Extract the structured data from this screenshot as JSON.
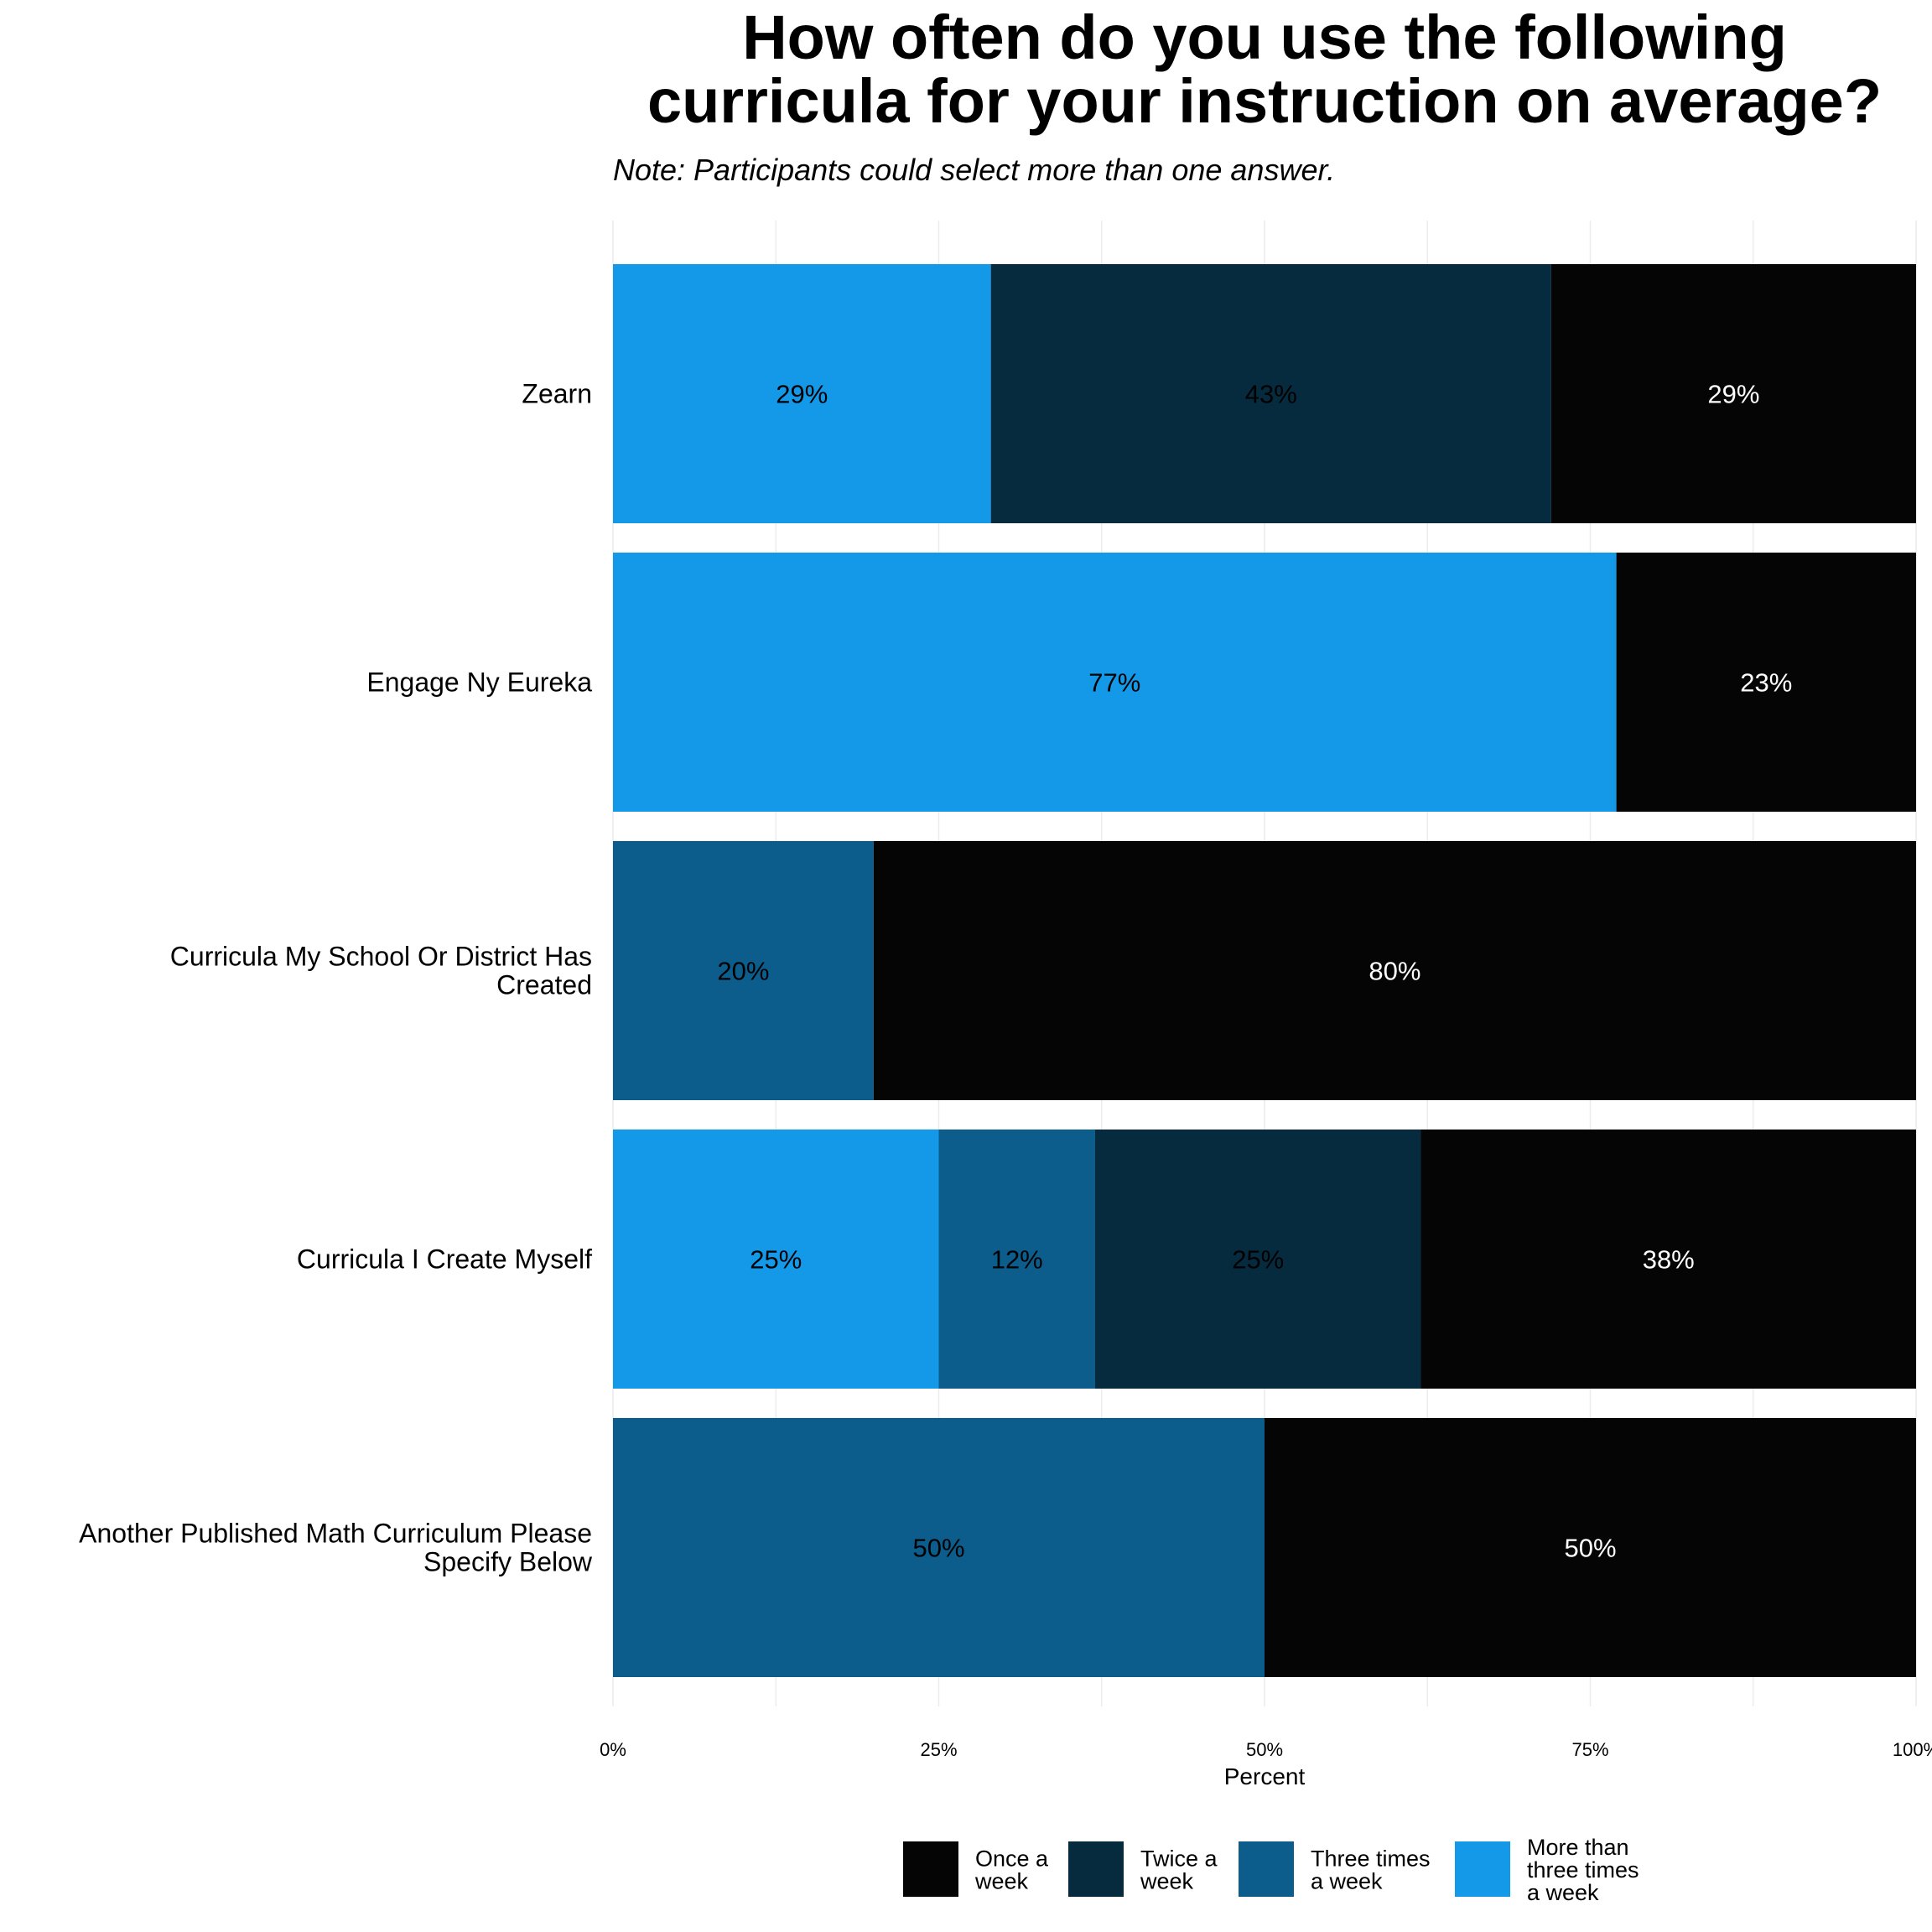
{
  "chart_data": {
    "type": "bar",
    "orientation": "horizontal",
    "stacked": true,
    "title_lines": [
      "How often do you use the following",
      "curricula for your instruction on average?"
    ],
    "subtitle": "Note: Participants could select more than one answer.",
    "xlabel": "Percent",
    "ylabel": "",
    "xlim": [
      0,
      100
    ],
    "x_ticks": [
      0,
      25,
      50,
      75,
      100
    ],
    "x_tick_labels": [
      "0%",
      "25%",
      "50%",
      "75%",
      "100%"
    ],
    "grid": true,
    "legend_position": "bottom",
    "categories": [
      [
        "Zearn"
      ],
      [
        "Engage Ny Eureka"
      ],
      [
        "Curricula My School Or District Has",
        "Created"
      ],
      [
        "Curricula I Create Myself"
      ],
      [
        "Another Published Math Curriculum Please",
        "Specify Below"
      ]
    ],
    "series": [
      {
        "name": "More than three times a week",
        "legend_lines": [
          "More than",
          "three times",
          "a week"
        ],
        "color": "#1399e8",
        "label_color": "#000000",
        "values": [
          29,
          77,
          0,
          25,
          0
        ],
        "labels": [
          "29%",
          "77%",
          "",
          "25%",
          ""
        ]
      },
      {
        "name": "Three times a week",
        "legend_lines": [
          "Three times",
          "a week"
        ],
        "color": "#0c5d8c",
        "label_color": "#000000",
        "values": [
          0,
          0,
          20,
          12,
          50
        ],
        "labels": [
          "",
          "",
          "20%",
          "12%",
          "50%"
        ]
      },
      {
        "name": "Twice a week",
        "legend_lines": [
          "Twice a",
          "week"
        ],
        "color": "#072b3e",
        "label_color": "#000000",
        "values": [
          43,
          0,
          0,
          25,
          0
        ],
        "labels": [
          "43%",
          "",
          "",
          "25%",
          ""
        ]
      },
      {
        "name": "Once a week",
        "legend_lines": [
          "Once a",
          "week"
        ],
        "color": "#050505",
        "label_color": "#ffffff",
        "values": [
          29,
          23,
          80,
          38,
          50
        ],
        "labels": [
          "29%",
          "23%",
          "80%",
          "38%",
          "50%"
        ]
      }
    ],
    "legend_order": [
      3,
      2,
      1,
      0
    ]
  }
}
